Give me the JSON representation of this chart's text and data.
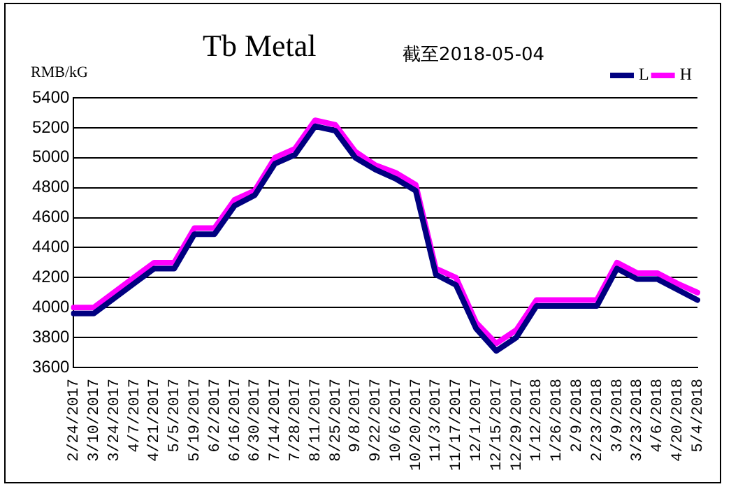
{
  "chart_data": {
    "type": "line",
    "title": "Tb Metal",
    "subtitle": "截至2018-05-04",
    "ylabel": "RMB/kG",
    "categories": [
      "2/24/2017",
      "3/10/2017",
      "3/24/2017",
      "4/7/2017",
      "4/21/2017",
      "5/5/2017",
      "5/19/2017",
      "6/2/2017",
      "6/16/2017",
      "6/30/2017",
      "7/14/2017",
      "7/28/2017",
      "8/11/2017",
      "8/25/2017",
      "9/8/2017",
      "9/22/2017",
      "10/6/2017",
      "10/20/2017",
      "11/3/2017",
      "11/17/2017",
      "12/1/2017",
      "12/15/2017",
      "12/29/2017",
      "1/12/2018",
      "1/26/2018",
      "2/9/2018",
      "2/23/2018",
      "3/9/2018",
      "3/23/2018",
      "4/6/2018",
      "4/20/2018",
      "5/4/2018"
    ],
    "series": [
      {
        "name": "L",
        "color": "#000080",
        "values": [
          3960,
          3960,
          4060,
          4160,
          4260,
          4260,
          4490,
          4490,
          4680,
          4750,
          4960,
          5020,
          5210,
          5180,
          5000,
          4920,
          4860,
          4780,
          4220,
          4150,
          3860,
          3710,
          3800,
          4010,
          4010,
          4010,
          4010,
          4260,
          4190,
          4190,
          4120,
          4050
        ]
      },
      {
        "name": "H",
        "color": "#ff00ff",
        "values": [
          4000,
          4000,
          4100,
          4200,
          4300,
          4300,
          4530,
          4530,
          4720,
          4780,
          5000,
          5060,
          5250,
          5220,
          5040,
          4950,
          4900,
          4820,
          4260,
          4200,
          3900,
          3760,
          3850,
          4050,
          4050,
          4050,
          4050,
          4300,
          4230,
          4230,
          4160,
          4100
        ]
      }
    ],
    "ylim": [
      3600,
      5400
    ],
    "yticks": [
      3600,
      3800,
      4000,
      4200,
      4400,
      4600,
      4800,
      5000,
      5200,
      5400
    ],
    "grid": "y",
    "legend": "top right",
    "marker": "none",
    "line_style": "solid"
  }
}
